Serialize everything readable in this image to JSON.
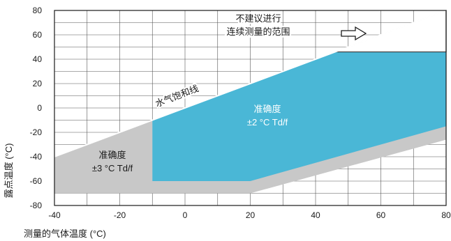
{
  "chart_data": {
    "type": "area",
    "title": "",
    "xlabel": "测量的气体温度 (°C)",
    "ylabel": "露点温度 (°C)",
    "xlim": [
      -40,
      80
    ],
    "ylim": [
      -80,
      80
    ],
    "x_ticks": [
      "-40",
      "-20",
      "0",
      "20",
      "40",
      "60",
      "80"
    ],
    "y_ticks": [
      "80",
      "60",
      "40",
      "20",
      "0",
      "-20",
      "-40",
      "-60",
      "-80"
    ],
    "grid": true,
    "regions": [
      {
        "label_lines": [
          "准确度",
          "±3 °C Td/f"
        ],
        "color": "#c8c8c8",
        "polygon": [
          [
            -40,
            -40
          ],
          [
            -10,
            -10
          ],
          [
            80,
            45
          ],
          [
            80,
            -26
          ],
          [
            20,
            -70
          ],
          [
            -40,
            -70
          ]
        ]
      },
      {
        "label_lines": [
          "准确度",
          "±2 °C Td/f"
        ],
        "color": "#4ab7d6",
        "polygon": [
          [
            -10,
            -10
          ],
          [
            46,
            46
          ],
          [
            80,
            46
          ],
          [
            80,
            -15
          ],
          [
            20,
            -60
          ],
          [
            -10,
            -60
          ]
        ]
      },
      {
        "label_lines": [
          "不建议进行",
          "连续测量的范围"
        ],
        "color": "#ffffff",
        "polygon": [
          [
            46,
            46
          ],
          [
            80,
            80
          ],
          [
            80,
            46
          ]
        ]
      }
    ],
    "saturation_line": {
      "label": "水气饱和线",
      "x": [
        -40,
        80
      ],
      "y": [
        -40,
        80
      ]
    }
  }
}
